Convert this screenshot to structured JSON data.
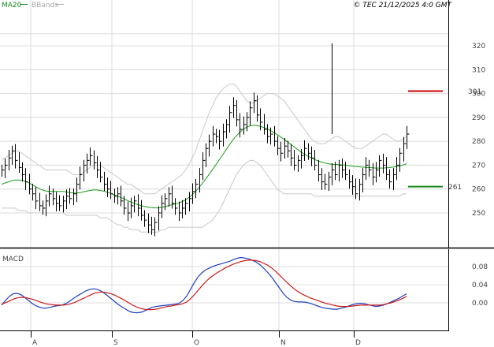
{
  "header": {
    "legend": [
      {
        "label": "MA20",
        "color": "#1a8c1a"
      },
      {
        "label": "BBands",
        "color": "#aaaaaa"
      }
    ],
    "copyright": "© TEC 21/12/2025 4:0 GMT"
  },
  "chart_data": [
    {
      "type": "ohlc",
      "grid": true,
      "ylim": [
        240,
        325
      ],
      "yticks": [
        "320",
        "310",
        "300",
        "290",
        "280",
        "270",
        "260",
        "250"
      ],
      "xticks": [
        "A",
        "S",
        "O",
        "N",
        "D"
      ],
      "levels": [
        {
          "label": "301",
          "value": 301,
          "color": "#cc0000"
        },
        {
          "label": "261",
          "value": 261,
          "color": "#1a8c1a"
        }
      ],
      "close": [
        268,
        270,
        273,
        276,
        272,
        269,
        266,
        263,
        260,
        258,
        255,
        253,
        252,
        255,
        258,
        256,
        254,
        253,
        255,
        257,
        256,
        258,
        262,
        266,
        270,
        272,
        274,
        271,
        268,
        265,
        262,
        260,
        258,
        257,
        258,
        255,
        252,
        250,
        253,
        255,
        252,
        249,
        247,
        245,
        243,
        246,
        250,
        254,
        256,
        258,
        254,
        252,
        250,
        252,
        254,
        256,
        259,
        262,
        266,
        272,
        277,
        280,
        283,
        282,
        280,
        284,
        287,
        292,
        295,
        289,
        285,
        287,
        290,
        294,
        297,
        291,
        288,
        285,
        282,
        283,
        280,
        277,
        275,
        278,
        276,
        273,
        270,
        272,
        274,
        277,
        275,
        273,
        270,
        266,
        263,
        262,
        265,
        268,
        266,
        270,
        268,
        266,
        263,
        261,
        258,
        262,
        266,
        270,
        268,
        265,
        268,
        272,
        270,
        266,
        263,
        266,
        270,
        275,
        279,
        283
      ],
      "ma20": [
        262,
        262.5,
        263,
        263.5,
        263.8,
        263.8,
        263.6,
        263.2,
        262.6,
        261.8,
        261,
        260.2,
        259.6,
        259.2,
        259,
        259,
        259,
        259,
        259,
        258.8,
        258.5,
        258.3,
        258.3,
        258.5,
        258.8,
        259.1,
        259.4,
        259.6,
        259.6,
        259.4,
        259.1,
        258.7,
        258.2,
        257.6,
        257.1,
        256.5,
        255.9,
        255.2,
        254.6,
        254,
        253.5,
        253,
        252.7,
        252.4,
        252.2,
        252.1,
        252.1,
        252.3,
        252.6,
        253,
        253.4,
        253.8,
        254.2,
        254.7,
        255.4,
        256.4,
        257.6,
        259,
        260.6,
        262.4,
        264.3,
        266.2,
        268.2,
        270.2,
        272.3,
        274.4,
        276.5,
        278.6,
        280.6,
        282.3,
        283.8,
        285,
        285.9,
        286.5,
        286.7,
        286.6,
        286.3,
        285.8,
        285.2,
        284.5,
        283.7,
        282.8,
        281.8,
        280.8,
        279.8,
        278.7,
        277.6,
        276.5,
        275.5,
        274.6,
        273.8,
        273.1,
        272.4,
        271.8,
        271.3,
        270.9,
        270.6,
        270.4,
        270.3,
        270.2,
        270.1,
        270,
        269.8,
        269.6,
        269.4,
        269.3,
        269.2,
        269.1,
        269,
        268.9,
        268.8,
        268.8,
        268.8,
        268.9,
        269,
        269.2,
        269.4,
        269.7,
        270.1,
        270.6
      ],
      "bb_upper": [
        272,
        273,
        274,
        275,
        276,
        276,
        275,
        274,
        273,
        272,
        271,
        270,
        269,
        268,
        268,
        268,
        268,
        268,
        268,
        268,
        267,
        266,
        266,
        266,
        267,
        268,
        269,
        270,
        270,
        270,
        269,
        268,
        267,
        266,
        265,
        264,
        263,
        262,
        262,
        261,
        260,
        259,
        258,
        258,
        258,
        258,
        259,
        260,
        261,
        262,
        263,
        264,
        265,
        266,
        268,
        270,
        273,
        276,
        280,
        284,
        288,
        292,
        295,
        298,
        300,
        302,
        303,
        304,
        304,
        303,
        301,
        299,
        297,
        296,
        296,
        297,
        298,
        299,
        300,
        300,
        300,
        299,
        298,
        297,
        295,
        293,
        291,
        289,
        287,
        285,
        283,
        281,
        280,
        279,
        279,
        279,
        280,
        281,
        282,
        282,
        281,
        280,
        279,
        278,
        277,
        277,
        277,
        278,
        279,
        280,
        281,
        282,
        283,
        283,
        282,
        281,
        280,
        280,
        281,
        282
      ],
      "bb_lower": [
        252,
        252,
        252,
        252,
        252,
        251,
        251,
        251,
        250,
        250,
        250,
        250,
        250,
        250,
        250,
        250,
        250,
        250,
        250,
        249,
        249,
        249,
        249,
        249,
        249,
        249,
        249,
        249,
        249,
        248,
        248,
        248,
        247,
        246,
        245,
        245,
        244,
        244,
        243,
        243,
        243,
        242,
        242,
        242,
        242,
        242,
        242,
        243,
        243,
        244,
        244,
        244,
        244,
        244,
        244,
        244,
        244,
        244,
        244,
        244,
        245,
        246,
        247,
        249,
        251,
        254,
        257,
        260,
        263,
        266,
        268,
        270,
        271,
        272,
        272,
        271,
        270,
        268,
        266,
        264,
        262,
        260,
        259,
        258,
        258,
        258,
        258,
        258,
        258,
        258,
        258,
        258,
        257,
        257,
        257,
        257,
        257,
        257,
        257,
        257,
        257,
        257,
        257,
        257,
        257,
        257,
        257,
        257,
        257,
        257,
        257,
        257,
        257,
        257,
        257,
        257,
        257,
        257,
        258,
        258
      ]
    },
    {
      "type": "line",
      "title": "MACD",
      "grid": true,
      "ylim": [
        -0.04,
        0.12
      ],
      "yticks": [
        "0.08",
        "0.04",
        "0.00"
      ],
      "series": [
        {
          "color": "#1f3fbf",
          "values": [
            -0.005,
            0.005,
            0.014,
            0.02,
            0.021,
            0.018,
            0.012,
            0.005,
            -0.002,
            -0.007,
            -0.01,
            -0.012,
            -0.011,
            -0.009,
            -0.007,
            -0.006,
            -0.004,
            0,
            0.006,
            0.012,
            0.017,
            0.022,
            0.027,
            0.03,
            0.031,
            0.029,
            0.025,
            0.019,
            0.012,
            0.005,
            -0.002,
            -0.008,
            -0.013,
            -0.018,
            -0.021,
            -0.022,
            -0.021,
            -0.018,
            -0.014,
            -0.01,
            -0.008,
            -0.007,
            -0.006,
            -0.005,
            -0.004,
            -0.003,
            -0.001,
            0.005,
            0.015,
            0.03,
            0.045,
            0.058,
            0.067,
            0.073,
            0.077,
            0.081,
            0.084,
            0.086,
            0.089,
            0.091,
            0.095,
            0.098,
            0.1,
            0.099,
            0.097,
            0.094,
            0.09,
            0.084,
            0.076,
            0.067,
            0.057,
            0.045,
            0.033,
            0.021,
            0.012,
            0.006,
            0.003,
            0.002,
            0.002,
            0.001,
            -0.001,
            -0.004,
            -0.007,
            -0.01,
            -0.012,
            -0.013,
            -0.014,
            -0.014,
            -0.012,
            -0.01,
            -0.007,
            -0.004,
            -0.002,
            -0.001,
            -0.002,
            -0.004,
            -0.006,
            -0.008,
            -0.007,
            -0.005,
            -0.002,
            0.002,
            0.006,
            0.01,
            0.015,
            0.02
          ]
        },
        {
          "color": "#cc1a1a",
          "values": [
            -0.003,
            0,
            0.004,
            0.008,
            0.011,
            0.012,
            0.012,
            0.01,
            0.008,
            0.005,
            0.002,
            -0.001,
            -0.003,
            -0.004,
            -0.005,
            -0.005,
            -0.005,
            -0.004,
            -0.002,
            0.001,
            0.005,
            0.009,
            0.013,
            0.017,
            0.021,
            0.023,
            0.024,
            0.023,
            0.021,
            0.018,
            0.014,
            0.01,
            0.005,
            0,
            -0.005,
            -0.009,
            -0.012,
            -0.014,
            -0.015,
            -0.015,
            -0.014,
            -0.012,
            -0.01,
            -0.008,
            -0.007,
            -0.005,
            -0.004,
            -0.002,
            0.002,
            0.009,
            0.018,
            0.028,
            0.038,
            0.047,
            0.055,
            0.061,
            0.067,
            0.072,
            0.077,
            0.081,
            0.085,
            0.088,
            0.091,
            0.093,
            0.094,
            0.094,
            0.093,
            0.091,
            0.087,
            0.083,
            0.077,
            0.07,
            0.062,
            0.053,
            0.045,
            0.037,
            0.03,
            0.024,
            0.019,
            0.015,
            0.011,
            0.008,
            0.005,
            0.002,
            -0.001,
            -0.003,
            -0.005,
            -0.007,
            -0.008,
            -0.008,
            -0.008,
            -0.007,
            -0.006,
            -0.005,
            -0.005,
            -0.005,
            -0.005,
            -0.005,
            -0.005,
            -0.004,
            -0.002,
            0,
            0.003,
            0.006,
            0.01,
            0.014
          ]
        }
      ]
    }
  ]
}
